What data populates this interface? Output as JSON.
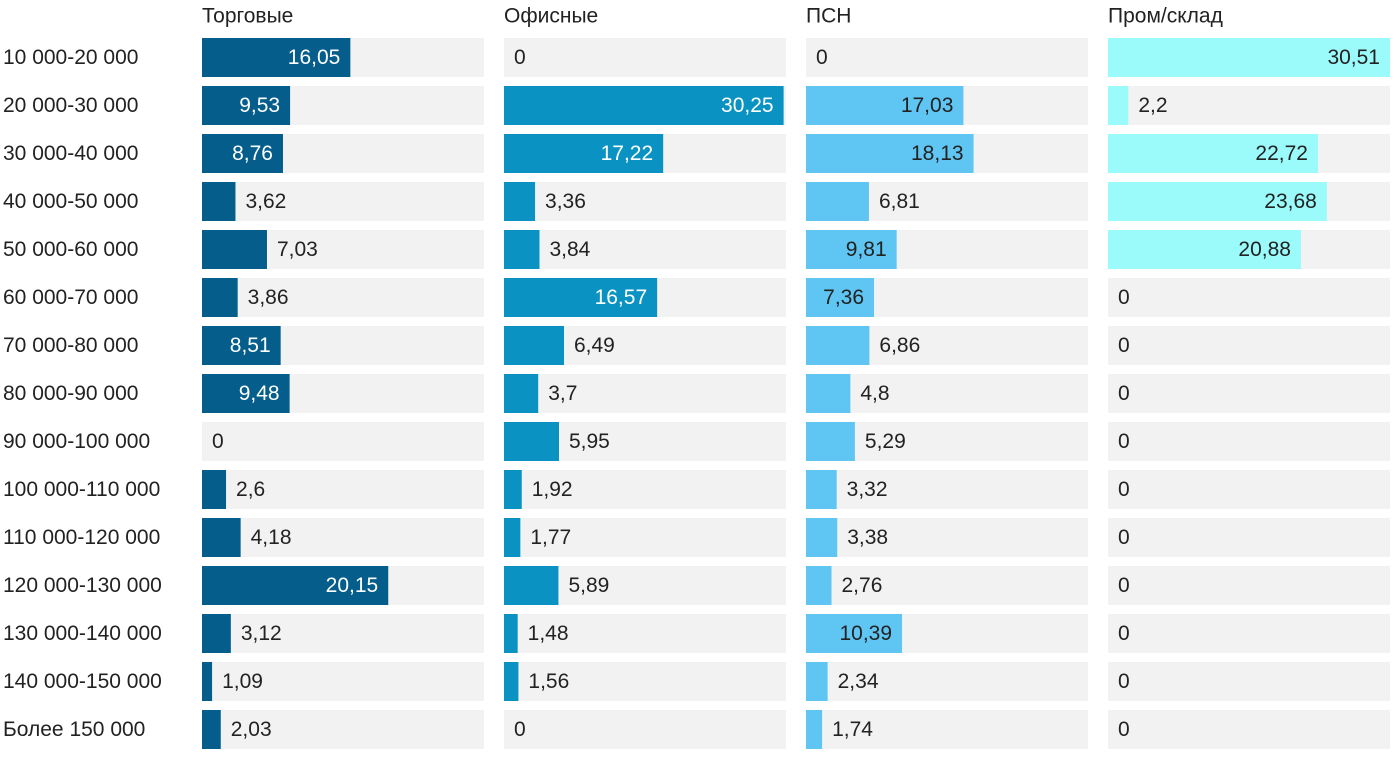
{
  "chart_data": {
    "type": "bar",
    "orientation": "horizontal",
    "layout": "small-multiples",
    "xlim": [
      0,
      30.51
    ],
    "grid": false,
    "legend": "none",
    "categories": [
      "10 000-20 000",
      "20 000-30 000",
      "30 000-40 000",
      "40 000-50 000",
      "50 000-60 000",
      "60 000-70 000",
      "70 000-80 000",
      "80 000-90 000",
      "90 000-100 000",
      "100 000-110 000",
      "110 000-120 000",
      "120 000-130 000",
      "130 000-140 000",
      "140 000-150 000",
      "Более 150 000"
    ],
    "series": [
      {
        "name": "Торговые",
        "color": "#045d8a",
        "label_color_inside": "#ffffff",
        "values": [
          16.05,
          9.53,
          8.76,
          3.62,
          7.03,
          3.86,
          8.51,
          9.48,
          0,
          2.6,
          4.18,
          20.15,
          3.12,
          1.09,
          2.03
        ],
        "labels": [
          "16,05",
          "9,53",
          "8,76",
          "3,62",
          "7,03",
          "3,86",
          "8,51",
          "9,48",
          "0",
          "2,6",
          "4,18",
          "20,15",
          "3,12",
          "1,09",
          "2,03"
        ]
      },
      {
        "name": "Офисные",
        "color": "#0a93c2",
        "label_color_inside": "#ffffff",
        "values": [
          0,
          30.25,
          17.22,
          3.36,
          3.84,
          16.57,
          6.49,
          3.7,
          5.95,
          1.92,
          1.77,
          5.89,
          1.48,
          1.56,
          0
        ],
        "labels": [
          "0",
          "30,25",
          "17,22",
          "3,36",
          "3,84",
          "16,57",
          "6,49",
          "3,7",
          "5,95",
          "1,92",
          "1,77",
          "5,89",
          "1,48",
          "1,56",
          "0"
        ]
      },
      {
        "name": "ПСН",
        "color": "#5fc5f2",
        "label_color_inside": "#222222",
        "values": [
          0,
          17.03,
          18.13,
          6.81,
          9.81,
          7.36,
          6.86,
          4.8,
          5.29,
          3.32,
          3.38,
          2.76,
          10.39,
          2.34,
          1.74
        ],
        "labels": [
          "0",
          "17,03",
          "18,13",
          "6,81",
          "9,81",
          "7,36",
          "6,86",
          "4,8",
          "5,29",
          "3,32",
          "3,38",
          "2,76",
          "10,39",
          "2,34",
          "1,74"
        ]
      },
      {
        "name": "Пром/склад",
        "color": "#9bfbfb",
        "label_color_inside": "#222222",
        "values": [
          30.51,
          2.2,
          22.72,
          23.68,
          20.88,
          0,
          0,
          0,
          0,
          0,
          0,
          0,
          0,
          0,
          0
        ],
        "labels": [
          "30,51",
          "2,2",
          "22,72",
          "23,68",
          "20,88",
          "0",
          "0",
          "0",
          "0",
          "0",
          "0",
          "0",
          "0",
          "0",
          "0"
        ]
      }
    ],
    "track_color": "#f2f2f2",
    "label_color_outside": "#222222"
  }
}
